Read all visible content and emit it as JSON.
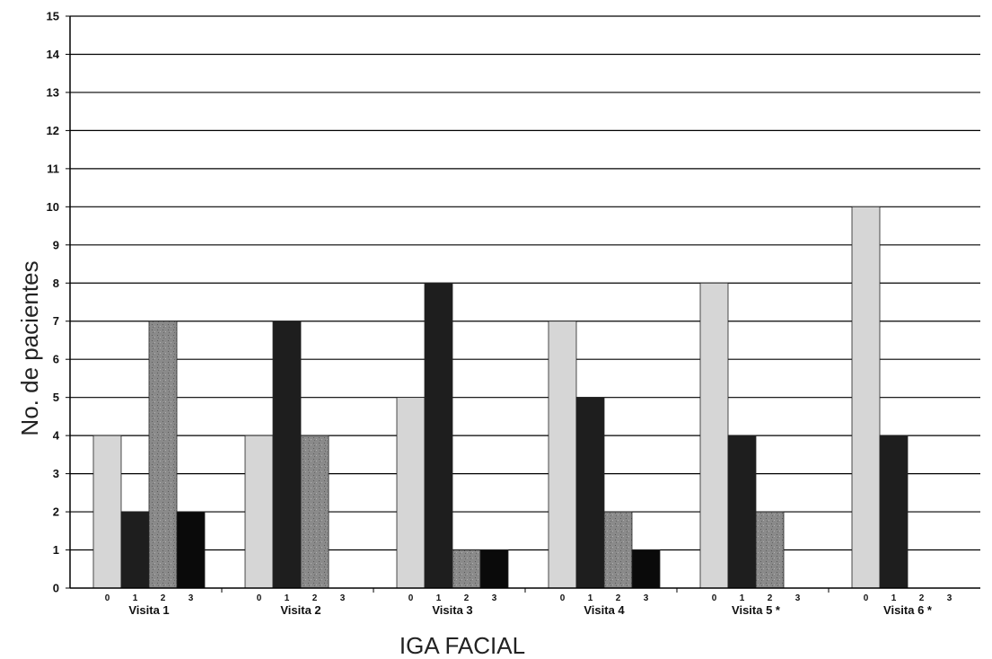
{
  "chart_data": {
    "type": "bar",
    "title": "",
    "xlabel": "IGA FACIAL",
    "ylabel": "No. de pacientes",
    "ylim": [
      0,
      15
    ],
    "yticks": [
      0,
      1,
      2,
      3,
      4,
      5,
      6,
      7,
      8,
      9,
      10,
      11,
      12,
      13,
      14,
      15
    ],
    "categories": [
      "Visita 1",
      "Visita 2",
      "Visita 3",
      "Visita 4",
      "Visita 5 *",
      "Visita 6 *"
    ],
    "sub_categories": [
      "0",
      "1",
      "2",
      "3"
    ],
    "grid": true,
    "legend": "none",
    "series": [
      {
        "key": "0",
        "values": [
          4,
          4,
          5,
          7,
          8,
          10
        ],
        "color": "#d6d6d6"
      },
      {
        "key": "1",
        "values": [
          2,
          7,
          8,
          5,
          4,
          4
        ],
        "color": "#1e1e1e"
      },
      {
        "key": "2",
        "values": [
          7,
          4,
          1,
          2,
          2,
          0
        ],
        "color": "#8a8a8a"
      },
      {
        "key": "3",
        "values": [
          2,
          0,
          1,
          1,
          0,
          0
        ],
        "color": "#0a0a0a"
      }
    ]
  }
}
